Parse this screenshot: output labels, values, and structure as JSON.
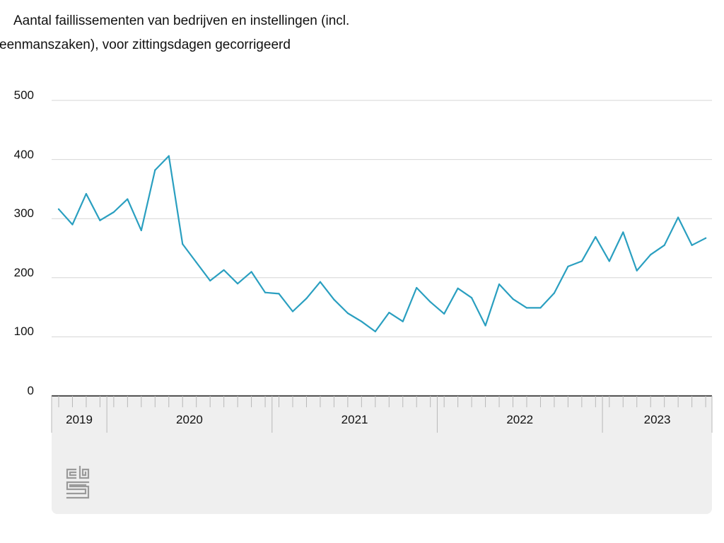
{
  "title": {
    "line1": "Aantal faillissementen van bedrijven en instellingen (incl.",
    "line2": "eenmanszaken), voor zittingsdagen gecorrigeerd"
  },
  "colors": {
    "line": "#2a9fc0",
    "grid": "#d6d6d6",
    "axis": "#555555",
    "panel": "#efefef",
    "logo": "#9a9a9a"
  },
  "logo_icon": "cbs-logo",
  "chart_data": {
    "type": "line",
    "title": "Aantal faillissementen van bedrijven en instellingen (incl. eenmanszaken), voor zittingsdagen gecorrigeerd",
    "xlabel": "",
    "ylabel": "",
    "ylim": [
      0,
      500
    ],
    "y_ticks": [
      "0",
      "100",
      "200",
      "300",
      "400",
      "500"
    ],
    "grid": true,
    "x_unit": "month",
    "x_start": "2019-09",
    "x_end": "2023-08",
    "years": [
      {
        "label": "2019",
        "first": "2019-09",
        "last": "2019-12"
      },
      {
        "label": "2020",
        "first": "2020-01",
        "last": "2020-12"
      },
      {
        "label": "2021",
        "first": "2021-01",
        "last": "2021-12"
      },
      {
        "label": "2022",
        "first": "2022-01",
        "last": "2022-12"
      },
      {
        "label": "2023",
        "first": "2023-01",
        "last": "2023-08"
      }
    ],
    "series": [
      {
        "values": [
          {
            "x": "2019-09",
            "y": 316
          },
          {
            "x": "2019-10",
            "y": 290
          },
          {
            "x": "2019-11",
            "y": 342
          },
          {
            "x": "2019-12",
            "y": 297
          },
          {
            "x": "2020-01",
            "y": 311
          },
          {
            "x": "2020-02",
            "y": 333
          },
          {
            "x": "2020-03",
            "y": 280
          },
          {
            "x": "2020-04",
            "y": 382
          },
          {
            "x": "2020-05",
            "y": 406
          },
          {
            "x": "2020-06",
            "y": 257
          },
          {
            "x": "2020-07",
            "y": 226
          },
          {
            "x": "2020-08",
            "y": 195
          },
          {
            "x": "2020-09",
            "y": 213
          },
          {
            "x": "2020-10",
            "y": 190
          },
          {
            "x": "2020-11",
            "y": 210
          },
          {
            "x": "2020-12",
            "y": 175
          },
          {
            "x": "2021-01",
            "y": 173
          },
          {
            "x": "2021-02",
            "y": 143
          },
          {
            "x": "2021-03",
            "y": 165
          },
          {
            "x": "2021-04",
            "y": 193
          },
          {
            "x": "2021-05",
            "y": 163
          },
          {
            "x": "2021-06",
            "y": 140
          },
          {
            "x": "2021-07",
            "y": 126
          },
          {
            "x": "2021-08",
            "y": 109
          },
          {
            "x": "2021-09",
            "y": 141
          },
          {
            "x": "2021-10",
            "y": 126
          },
          {
            "x": "2021-11",
            "y": 183
          },
          {
            "x": "2021-12",
            "y": 159
          },
          {
            "x": "2022-01",
            "y": 139
          },
          {
            "x": "2022-02",
            "y": 182
          },
          {
            "x": "2022-03",
            "y": 166
          },
          {
            "x": "2022-04",
            "y": 119
          },
          {
            "x": "2022-05",
            "y": 189
          },
          {
            "x": "2022-06",
            "y": 164
          },
          {
            "x": "2022-07",
            "y": 149
          },
          {
            "x": "2022-08",
            "y": 149
          },
          {
            "x": "2022-09",
            "y": 174
          },
          {
            "x": "2022-10",
            "y": 219
          },
          {
            "x": "2022-11",
            "y": 228
          },
          {
            "x": "2022-12",
            "y": 269
          },
          {
            "x": "2023-01",
            "y": 228
          },
          {
            "x": "2023-02",
            "y": 277
          },
          {
            "x": "2023-03",
            "y": 212
          },
          {
            "x": "2023-04",
            "y": 239
          },
          {
            "x": "2023-05",
            "y": 255
          },
          {
            "x": "2023-06",
            "y": 302
          },
          {
            "x": "2023-07",
            "y": 255
          },
          {
            "x": "2023-08",
            "y": 267
          }
        ]
      }
    ]
  }
}
